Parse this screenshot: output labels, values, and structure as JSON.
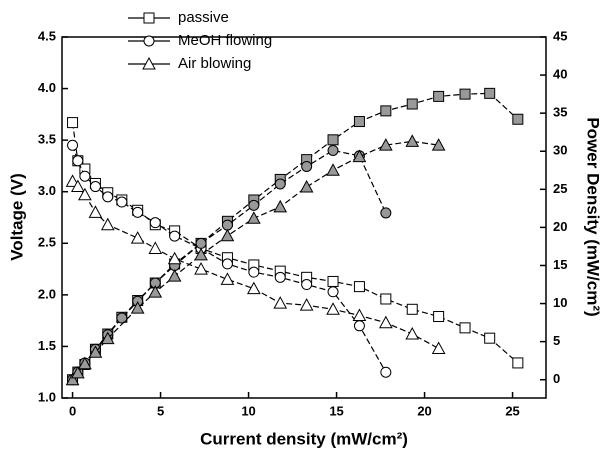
{
  "chart_data": {
    "type": "line",
    "x_label": "Current density (mW/cm²)",
    "y_label": "Voltage (V)",
    "y2_label": "Power Density (mW/cm²)",
    "xlim": [
      -0.6,
      26.9
    ],
    "xticks": [
      0,
      5,
      10,
      15,
      20,
      25
    ],
    "ylim": [
      1.0,
      4.5
    ],
    "yticks": [
      {
        "value": 1.0,
        "label": "1.0"
      },
      {
        "value": 1.5,
        "label": "1.5"
      },
      {
        "value": 2.0,
        "label": "2.0"
      },
      {
        "value": 2.5,
        "label": "2.5"
      },
      {
        "value": 3.0,
        "label": "3.0"
      },
      {
        "value": 3.5,
        "label": "3.5"
      },
      {
        "value": 4.0,
        "label": "4.0"
      },
      {
        "value": 4.5,
        "label": "4.5"
      }
    ],
    "y2lim": [
      -2.4,
      45
    ],
    "y2ticks": [
      0,
      5,
      10,
      15,
      20,
      25,
      30,
      35,
      40,
      45
    ],
    "legend": "upper-left",
    "series": [
      {
        "name": "passive",
        "marker": "square",
        "color": "#000000",
        "power_color": "#999999",
        "x": [
          0,
          0.3,
          0.7,
          1.3,
          2,
          2.8,
          3.7,
          4.7,
          5.8,
          7.3,
          8.8,
          10.3,
          11.8,
          13.3,
          14.8,
          16.3,
          17.8,
          19.3,
          20.8,
          22.3,
          23.7,
          25.3
        ],
        "values": [
          3.67,
          3.3,
          3.22,
          3.08,
          2.99,
          2.92,
          2.82,
          2.68,
          2.62,
          2.45,
          2.36,
          2.29,
          2.23,
          2.17,
          2.13,
          2.08,
          1.96,
          1.86,
          1.79,
          1.68,
          1.58,
          1.34
        ],
        "y2_values": [
          0,
          1,
          2,
          4,
          6,
          8.2,
          10.4,
          12.7,
          15.2,
          17.9,
          20.8,
          23.6,
          26.3,
          28.9,
          31.5,
          33.9,
          35.3,
          36.2,
          37.2,
          37.5,
          37.6,
          34.2
        ]
      },
      {
        "name": "MeOH flowing",
        "marker": "circle",
        "color": "#000000",
        "power_color": "#999999",
        "x": [
          0,
          0.3,
          0.7,
          1.3,
          2,
          2.8,
          3.7,
          4.7,
          5.8,
          7.3,
          8.8,
          10.3,
          11.8,
          13.3,
          14.8,
          16.3,
          17.8
        ],
        "values": [
          3.45,
          3.3,
          3.15,
          3.05,
          2.95,
          2.9,
          2.8,
          2.7,
          2.57,
          2.45,
          2.3,
          2.22,
          2.17,
          2.1,
          2.03,
          1.7,
          1.25
        ],
        "y2_values": [
          0,
          1,
          2.2,
          4,
          5.9,
          8.1,
          10.3,
          12.7,
          15,
          17.9,
          20.3,
          22.9,
          25.7,
          28,
          30.1,
          29.4,
          21.9
        ]
      },
      {
        "name": "Air blowing",
        "marker": "triangle",
        "color": "#000000",
        "power_color": "#999999",
        "x": [
          0,
          0.3,
          0.7,
          1.3,
          2,
          3.7,
          4.7,
          5.8,
          7.3,
          8.8,
          10.3,
          11.8,
          13.3,
          14.8,
          16.3,
          17.8,
          19.3,
          20.8
        ],
        "values": [
          3.1,
          3.05,
          2.97,
          2.8,
          2.68,
          2.55,
          2.45,
          2.35,
          2.25,
          2.15,
          2.06,
          1.92,
          1.9,
          1.86,
          1.8,
          1.73,
          1.62,
          1.48
        ],
        "y2_values": [
          0,
          0.9,
          2.1,
          3.6,
          5.4,
          9.4,
          11.5,
          13.6,
          16.4,
          18.9,
          21.2,
          22.7,
          25.3,
          27.5,
          29.3,
          30.8,
          31.3,
          30.8
        ]
      }
    ]
  }
}
